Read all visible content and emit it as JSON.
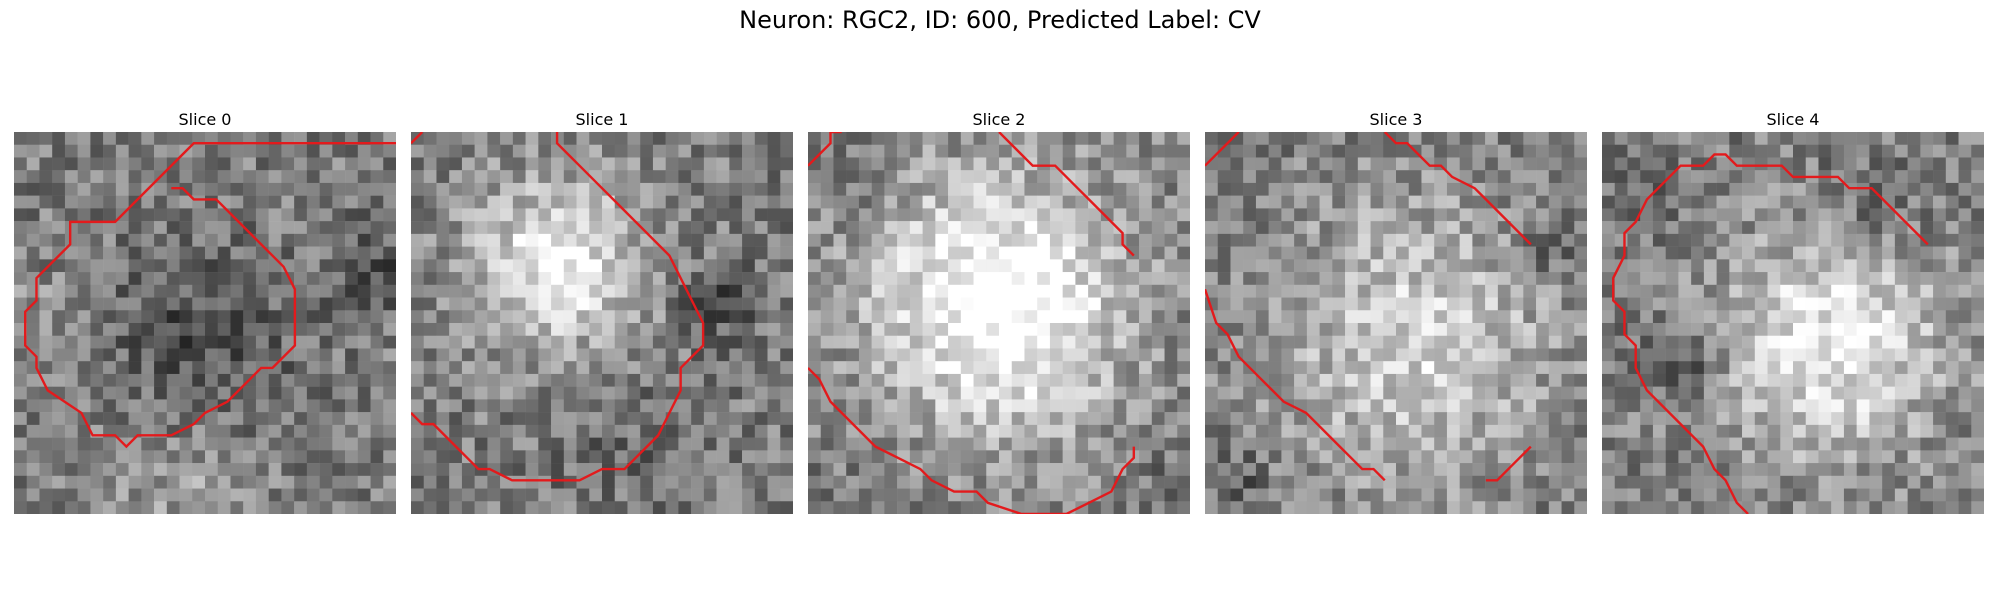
{
  "figure": {
    "title": "Neuron: RGC2, ID: 600, Predicted Label: CV",
    "contour_color": "#e31a1c",
    "colormap": "gray",
    "panels": [
      {
        "title": "Slice 0",
        "seed": 11,
        "blobs": [
          [
            0.5,
            0.55,
            0.3,
            -22
          ],
          [
            0.45,
            0.95,
            0.25,
            16
          ],
          [
            0.05,
            0.45,
            0.1,
            12
          ],
          [
            0.95,
            0.35,
            0.15,
            -18
          ]
        ],
        "contour": [
          [
            [
              95,
              1
            ],
            [
              16,
              1
            ],
            [
              9,
              8
            ],
            [
              5,
              8
            ],
            [
              5,
              10
            ],
            [
              2,
              13
            ],
            [
              2,
              15
            ],
            [
              1,
              16
            ],
            [
              1,
              19
            ],
            [
              2,
              20
            ],
            [
              2,
              21
            ],
            [
              3,
              23
            ],
            [
              6,
              25
            ],
            [
              7,
              27
            ],
            [
              9,
              27
            ],
            [
              10,
              28
            ],
            [
              11,
              27
            ],
            [
              14,
              27
            ],
            [
              16,
              26
            ],
            [
              17,
              25
            ],
            [
              19,
              24
            ],
            [
              21,
              22
            ],
            [
              22,
              21
            ],
            [
              23,
              21
            ],
            [
              25,
              19
            ],
            [
              25,
              14
            ],
            [
              24,
              12
            ],
            [
              22,
              10
            ],
            [
              21,
              9
            ],
            [
              19,
              7
            ],
            [
              18,
              6
            ],
            [
              16,
              6
            ],
            [
              15,
              5
            ],
            [
              14,
              5
            ]
          ]
        ]
      },
      {
        "title": "Slice 1",
        "seed": 23,
        "blobs": [
          [
            0.38,
            0.35,
            0.28,
            55
          ],
          [
            0.55,
            0.8,
            0.25,
            -8
          ],
          [
            0.8,
            0.45,
            0.12,
            -25
          ]
        ],
        "contour": [
          [
            [
              0,
              25
            ],
            [
              1,
              26
            ],
            [
              2,
              26
            ],
            [
              3,
              27
            ],
            [
              4,
              28
            ],
            [
              5,
              29
            ],
            [
              6,
              30
            ],
            [
              7,
              30
            ],
            [
              9,
              31
            ],
            [
              13,
              31
            ],
            [
              15,
              31
            ],
            [
              17,
              30
            ],
            [
              19,
              30
            ],
            [
              20,
              29
            ],
            [
              21,
              28
            ],
            [
              22,
              27
            ],
            [
              23,
              25
            ],
            [
              24,
              23
            ],
            [
              24,
              21
            ],
            [
              25,
              20
            ],
            [
              26,
              19
            ],
            [
              26,
              17
            ],
            [
              25,
              15
            ],
            [
              24,
              13
            ],
            [
              23,
              11
            ],
            [
              22,
              10
            ],
            [
              20,
              8
            ],
            [
              19,
              7
            ],
            [
              18,
              6
            ],
            [
              17,
              5
            ],
            [
              16,
              4
            ],
            [
              15,
              3
            ],
            [
              14,
              2
            ],
            [
              13,
              1
            ],
            [
              13,
              0
            ]
          ],
          [
            [
              0,
              1
            ],
            [
              1,
              0
            ]
          ]
        ]
      },
      {
        "title": "Slice 2",
        "seed": 37,
        "blobs": [
          [
            0.5,
            0.45,
            0.42,
            68
          ],
          [
            0.15,
            0.15,
            0.12,
            -5
          ],
          [
            0.95,
            0.9,
            0.1,
            -10
          ]
        ],
        "contour": [
          [
            [
              0,
              21
            ],
            [
              1,
              22
            ],
            [
              2,
              24
            ],
            [
              3,
              25
            ],
            [
              4,
              26
            ],
            [
              6,
              28
            ],
            [
              8,
              29
            ],
            [
              10,
              30
            ],
            [
              11,
              31
            ],
            [
              13,
              32
            ],
            [
              15,
              32
            ],
            [
              16,
              33
            ],
            [
              19,
              34
            ],
            [
              23,
              34
            ],
            [
              25,
              33
            ],
            [
              27,
              32
            ],
            [
              28,
              30
            ],
            [
              29,
              29
            ],
            [
              29,
              28
            ]
          ],
          [
            [
              0,
              3
            ],
            [
              1,
              2
            ],
            [
              2,
              1
            ],
            [
              2,
              0
            ],
            [
              3,
              0
            ]
          ],
          [
            [
              17,
              0
            ],
            [
              18,
              1
            ],
            [
              19,
              2
            ],
            [
              20,
              3
            ],
            [
              22,
              3
            ],
            [
              23,
              4
            ],
            [
              24,
              5
            ],
            [
              25,
              6
            ],
            [
              26,
              7
            ],
            [
              27,
              8
            ],
            [
              28,
              9
            ],
            [
              28,
              10
            ],
            [
              29,
              11
            ]
          ]
        ]
      },
      {
        "title": "Slice 3",
        "seed": 53,
        "blobs": [
          [
            0.55,
            0.55,
            0.45,
            40
          ],
          [
            0.1,
            0.9,
            0.1,
            -15
          ],
          [
            0.9,
            0.3,
            0.12,
            -18
          ]
        ],
        "contour": [
          [
            [
              0,
              14
            ],
            [
              1,
              17
            ],
            [
              2,
              18
            ],
            [
              3,
              20
            ],
            [
              4,
              21
            ],
            [
              5,
              22
            ],
            [
              6,
              23
            ],
            [
              7,
              24
            ],
            [
              9,
              25
            ],
            [
              10,
              26
            ],
            [
              11,
              27
            ],
            [
              12,
              28
            ],
            [
              13,
              29
            ],
            [
              14,
              30
            ],
            [
              15,
              30
            ],
            [
              16,
              31
            ]
          ],
          [
            [
              0,
              3
            ],
            [
              2,
              1
            ],
            [
              3,
              0
            ]
          ],
          [
            [
              16,
              0
            ],
            [
              17,
              1
            ],
            [
              18,
              1
            ],
            [
              19,
              2
            ],
            [
              20,
              3
            ],
            [
              21,
              3
            ],
            [
              22,
              4
            ],
            [
              24,
              5
            ],
            [
              25,
              6
            ],
            [
              26,
              7
            ],
            [
              27,
              8
            ],
            [
              28,
              9
            ],
            [
              29,
              10
            ]
          ],
          [
            [
              25,
              31
            ],
            [
              26,
              31
            ],
            [
              27,
              30
            ],
            [
              28,
              29
            ],
            [
              29,
              28
            ]
          ]
        ]
      },
      {
        "title": "Slice 4",
        "seed": 71,
        "blobs": [
          [
            0.6,
            0.55,
            0.38,
            52
          ],
          [
            0.2,
            0.6,
            0.12,
            -30
          ],
          [
            0.7,
            0.2,
            0.2,
            -15
          ],
          [
            0.1,
            0.2,
            0.12,
            -8
          ]
        ],
        "contour": [
          [
            [
              13,
              34
            ],
            [
              12,
              33
            ],
            [
              11,
              31
            ],
            [
              10,
              30
            ],
            [
              9,
              28
            ],
            [
              8,
              27
            ],
            [
              7,
              26
            ],
            [
              6,
              25
            ],
            [
              5,
              24
            ],
            [
              4,
              23
            ],
            [
              3,
              21
            ],
            [
              3,
              19
            ],
            [
              2,
              18
            ],
            [
              2,
              16
            ],
            [
              1,
              15
            ],
            [
              1,
              13
            ],
            [
              2,
              11
            ],
            [
              2,
              9
            ],
            [
              3,
              8
            ],
            [
              4,
              6
            ],
            [
              5,
              5
            ],
            [
              6,
              4
            ],
            [
              7,
              3
            ],
            [
              9,
              3
            ],
            [
              10,
              2
            ],
            [
              11,
              2
            ],
            [
              12,
              3
            ],
            [
              14,
              3
            ],
            [
              16,
              3
            ],
            [
              17,
              4
            ],
            [
              19,
              4
            ],
            [
              21,
              4
            ],
            [
              22,
              5
            ],
            [
              24,
              5
            ],
            [
              25,
              6
            ],
            [
              26,
              7
            ],
            [
              27,
              8
            ],
            [
              28,
              9
            ],
            [
              29,
              10
            ]
          ]
        ]
      }
    ]
  }
}
